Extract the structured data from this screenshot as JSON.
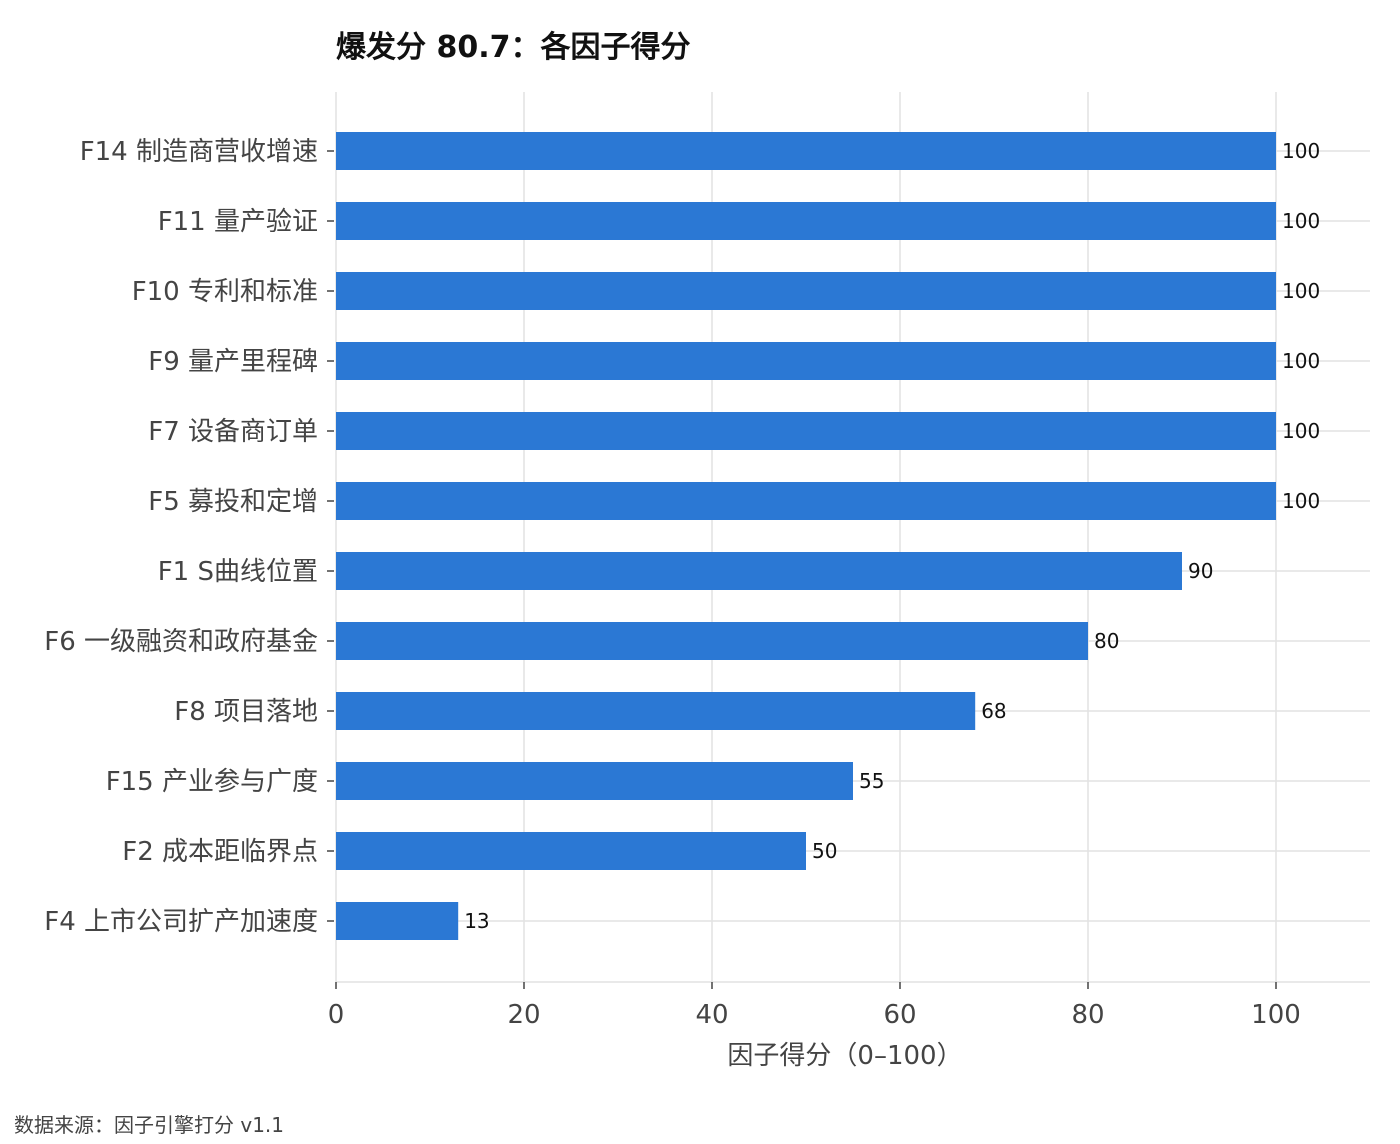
{
  "chart_data": {
    "type": "bar",
    "orientation": "horizontal",
    "title": "爆发分 80.7：各因子得分",
    "xlabel": "因子得分（0–100）",
    "ylabel": "",
    "xlim": [
      0,
      110
    ],
    "xticks": [
      0,
      20,
      40,
      60,
      80,
      100
    ],
    "grid": true,
    "categories": [
      "F14 制造商营收增速",
      "F11 量产验证",
      "F10 专利和标准",
      "F9 量产里程碑",
      "F7 设备商订单",
      "F5 募投和定增",
      "F1 S曲线位置",
      "F6 一级融资和政府基金",
      "F8 项目落地",
      "F15 产业参与广度",
      "F2 成本距临界点",
      "F4 上市公司扩产加速度"
    ],
    "values": [
      100,
      100,
      100,
      100,
      100,
      100,
      90,
      80,
      68,
      55,
      50,
      13
    ],
    "value_labels": [
      "100",
      "100",
      "100",
      "100",
      "100",
      "100",
      "90",
      "80",
      "68",
      "55",
      "50",
      "13"
    ],
    "bar_color": "#2b78d4",
    "source": "数据来源：因子引擎打分 v1.1"
  }
}
